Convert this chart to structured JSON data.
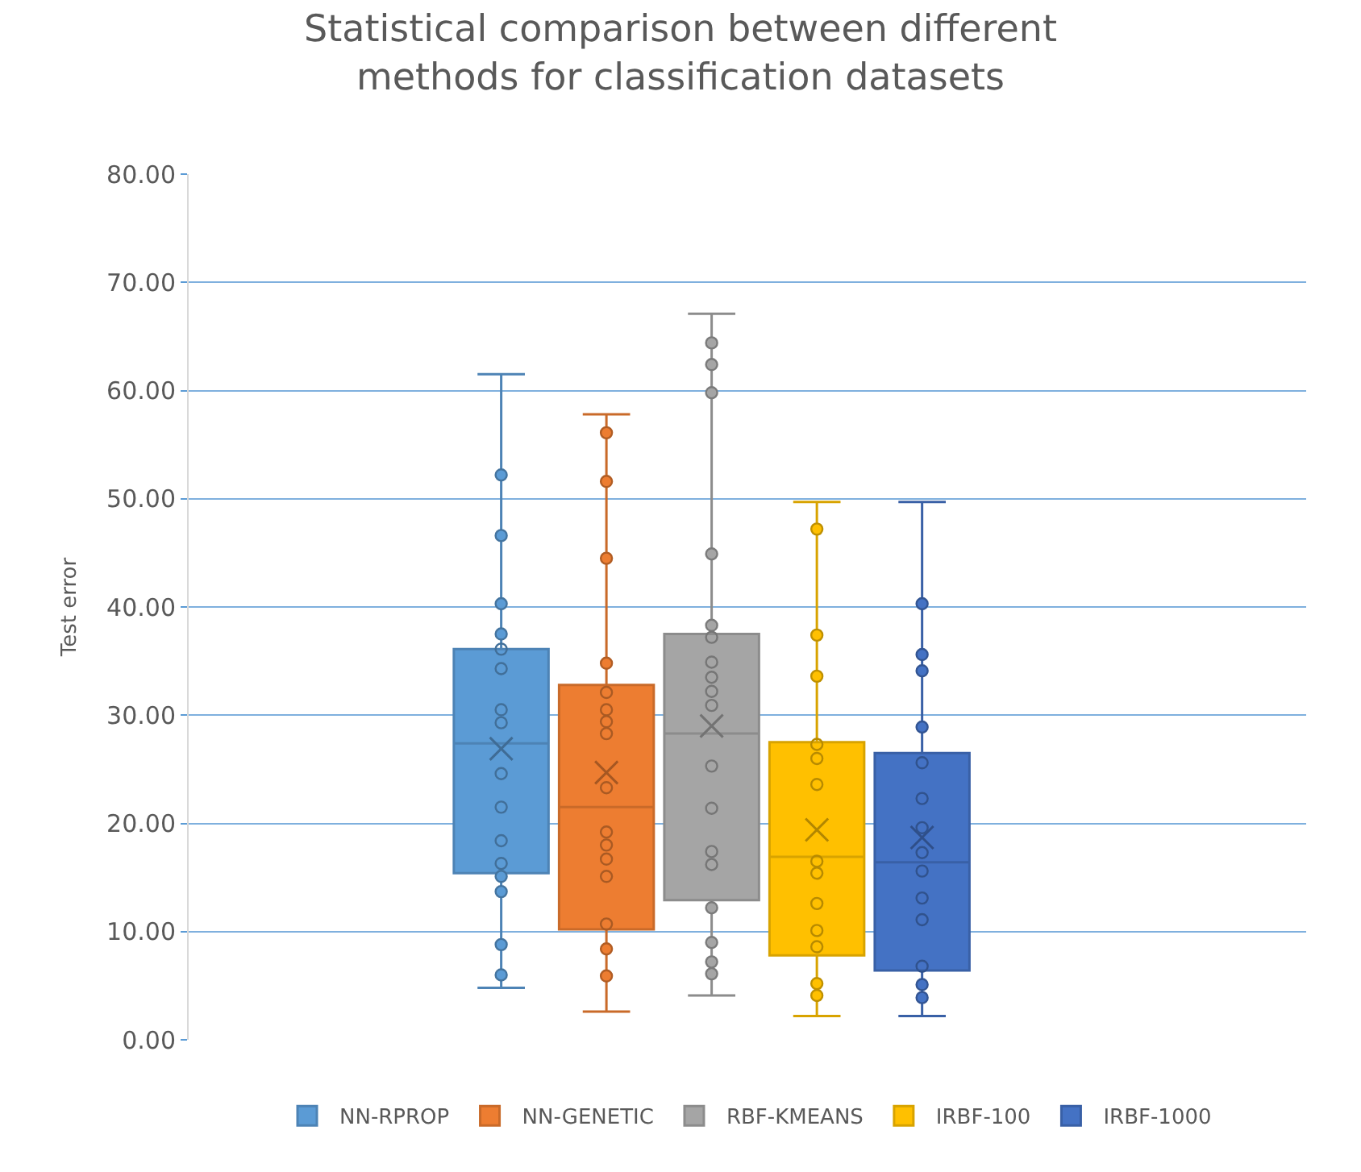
{
  "chart_data": {
    "type": "box",
    "title": "Statistical comparison between different methods for classification datasets",
    "ylabel": "Test error",
    "categories": [
      null
    ],
    "ylim": [
      0,
      80
    ],
    "yticks": [
      {
        "value": 0,
        "label": "0.00"
      },
      {
        "value": 10,
        "label": "10.00"
      },
      {
        "value": 20,
        "label": "20.00"
      },
      {
        "value": 30,
        "label": "30.00"
      },
      {
        "value": 40,
        "label": "40.00"
      },
      {
        "value": 50,
        "label": "50.00"
      },
      {
        "value": 60,
        "label": "60.00"
      },
      {
        "value": 70,
        "label": "70.00"
      },
      {
        "value": 80,
        "label": "80.00"
      }
    ],
    "grid": "y",
    "legend": "bottom",
    "marker": "circle",
    "series": [
      {
        "name": "NN-RPROP",
        "color": "#5b9bd5",
        "boxes": [
          {
            "low": 4.8,
            "q1": 15.4,
            "median": 27.4,
            "q3": 36.1,
            "high": 61.5,
            "mean": 26.9,
            "outliers": [
              52.2,
              46.6,
              40.3,
              37.5,
              36.1,
              34.3,
              30.5,
              29.3,
              24.6,
              21.5,
              18.4,
              16.3,
              15.1,
              13.7,
              8.8,
              6.0
            ]
          }
        ]
      },
      {
        "name": "NN-GENETIC",
        "color": "#ed7d31",
        "boxes": [
          {
            "low": 2.6,
            "q1": 10.2,
            "median": 21.5,
            "q3": 32.8,
            "high": 57.8,
            "mean": 24.7,
            "outliers": [
              56.1,
              51.6,
              44.5,
              34.8,
              32.1,
              30.5,
              29.4,
              28.3,
              23.3,
              19.2,
              18.0,
              16.7,
              15.1,
              10.7,
              8.4,
              5.9
            ]
          }
        ]
      },
      {
        "name": "RBF-KMEANS",
        "color": "#a5a5a5",
        "boxes": [
          {
            "low": 4.1,
            "q1": 12.9,
            "median": 28.3,
            "q3": 37.5,
            "high": 67.1,
            "mean": 29.0,
            "outliers": [
              64.4,
              62.4,
              59.8,
              44.9,
              38.3,
              37.2,
              34.9,
              33.5,
              32.2,
              30.9,
              25.3,
              21.4,
              17.4,
              16.2,
              12.2,
              9.0,
              7.2,
              6.1
            ]
          }
        ]
      },
      {
        "name": "IRBF-100",
        "color": "#ffc000",
        "boxes": [
          {
            "low": 2.2,
            "q1": 7.8,
            "median": 16.9,
            "q3": 27.5,
            "high": 49.7,
            "mean": 19.4,
            "outliers": [
              47.2,
              37.4,
              33.6,
              27.3,
              26.0,
              23.6,
              16.5,
              15.4,
              12.6,
              10.1,
              8.6,
              5.2,
              4.1
            ]
          }
        ]
      },
      {
        "name": "IRBF-1000",
        "color": "#4472c4",
        "boxes": [
          {
            "low": 2.2,
            "q1": 6.4,
            "median": 16.4,
            "q3": 26.5,
            "high": 49.7,
            "mean": 18.7,
            "outliers": [
              40.3,
              35.6,
              34.1,
              28.9,
              25.6,
              22.3,
              19.6,
              17.3,
              15.6,
              13.1,
              11.1,
              6.8,
              5.1,
              3.9
            ]
          }
        ]
      }
    ]
  }
}
